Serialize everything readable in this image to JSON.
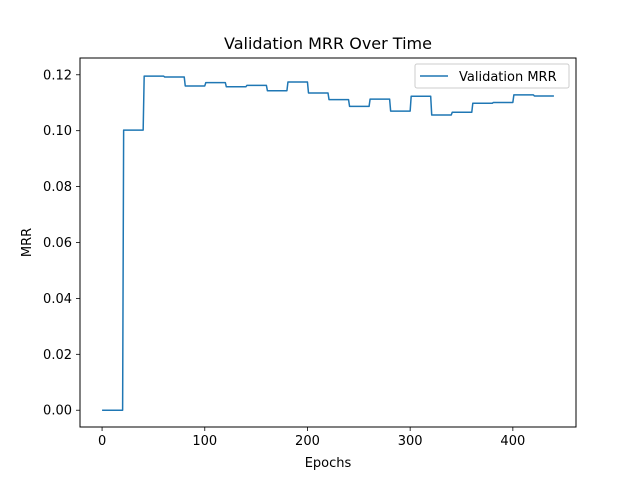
{
  "chart_data": {
    "type": "line",
    "title": "Validation MRR Over Time",
    "xlabel": "Epochs",
    "ylabel": "MRR",
    "xlim": [
      -21.5,
      461.5
    ],
    "ylim": [
      -0.006,
      0.126
    ],
    "x_ticks": [
      0,
      100,
      200,
      300,
      400
    ],
    "x_tick_labels": [
      "0",
      "100",
      "200",
      "300",
      "400"
    ],
    "y_ticks": [
      0.0,
      0.02,
      0.04,
      0.06,
      0.08,
      0.1,
      0.12
    ],
    "y_tick_labels": [
      "0.00",
      "0.02",
      "0.04",
      "0.06",
      "0.08",
      "0.10",
      "0.12"
    ],
    "grid": false,
    "legend": {
      "position": "top-right",
      "entries": [
        "Validation MRR"
      ]
    },
    "series": [
      {
        "name": "Validation MRR",
        "color": "#1f77b4",
        "x": [
          0,
          20,
          21,
          40,
          41,
          60,
          61,
          80,
          81,
          100,
          101,
          120,
          121,
          140,
          141,
          160,
          161,
          180,
          181,
          200,
          201,
          220,
          221,
          240,
          241,
          260,
          261,
          280,
          281,
          300,
          301,
          320,
          321,
          340,
          341,
          360,
          361,
          380,
          381,
          400,
          401,
          420,
          421,
          440
        ],
        "y": [
          0.0,
          0.0,
          0.1002,
          0.1002,
          0.1195,
          0.1195,
          0.1192,
          0.1192,
          0.116,
          0.116,
          0.1172,
          0.1172,
          0.1157,
          0.1157,
          0.1162,
          0.1162,
          0.1143,
          0.1143,
          0.1174,
          0.1174,
          0.1135,
          0.1135,
          0.1111,
          0.1111,
          0.1087,
          0.1087,
          0.1113,
          0.1113,
          0.107,
          0.107,
          0.1123,
          0.1123,
          0.1056,
          0.1056,
          0.1066,
          0.1066,
          0.1098,
          0.1098,
          0.1101,
          0.1101,
          0.1128,
          0.1128,
          0.1124,
          0.1124
        ]
      }
    ]
  }
}
